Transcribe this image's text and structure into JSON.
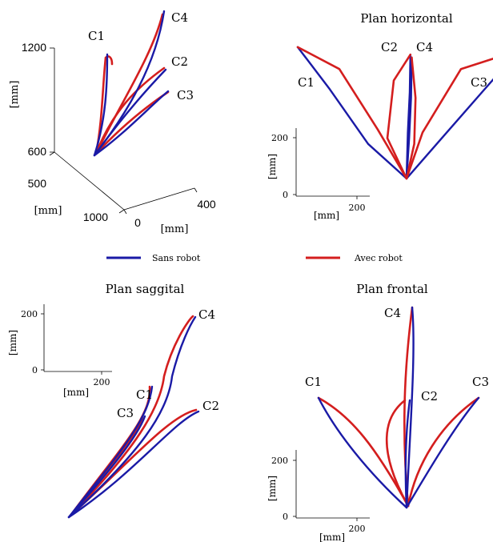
{
  "colors": {
    "sans_robot": "#1a1aa6",
    "avec_robot": "#d41e1e",
    "axis": "#000000"
  },
  "legend": [
    {
      "label": "Sans robot",
      "color": "#1a1aa6"
    },
    {
      "label": "Avec robot",
      "color": "#d41e1e"
    }
  ],
  "chart_data": [
    {
      "panel": "3d",
      "type": "line",
      "title": "",
      "z_label": "[mm]",
      "z_ticks": [
        "1200",
        "600"
      ],
      "y_label": "[mm]",
      "y_ticks": [
        "500",
        "1000"
      ],
      "x_label": "[mm]",
      "x_ticks": [
        "0",
        "400"
      ],
      "target_labels": [
        "C1",
        "C4",
        "C2",
        "C3"
      ]
    },
    {
      "panel": "horizontal",
      "type": "line",
      "title": "Plan horizontal",
      "xlabel": "[mm]",
      "ylabel": "[mm]",
      "x_ticks": [
        "200"
      ],
      "y_ticks": [
        "200",
        "0"
      ],
      "target_labels": [
        "C1",
        "C2",
        "C4",
        "C3"
      ],
      "series": [
        {
          "name": "Sans robot",
          "paths": [
            [
              [
                0,
                0
              ],
              [
                -60,
                60
              ],
              [
                -120,
                155
              ],
              [
                -170,
                228
              ]
            ],
            [
              [
                0,
                0
              ],
              [
                2,
                80
              ],
              [
                5,
                150
              ],
              [
                6,
                215
              ]
            ],
            [
              [
                0,
                0
              ],
              [
                4,
                70
              ],
              [
                7,
                140
              ],
              [
                8,
                210
              ]
            ],
            [
              [
                0,
                0
              ],
              [
                55,
                70
              ],
              [
                118,
                150
              ],
              [
                175,
                222
              ]
            ]
          ]
        },
        {
          "name": "Avec robot",
          "paths": [
            [
              [
                0,
                0
              ],
              [
                -45,
                85
              ],
              [
                -105,
                190
              ],
              [
                -170,
                228
              ]
            ],
            [
              [
                0,
                0
              ],
              [
                -30,
                70
              ],
              [
                -20,
                170
              ],
              [
                6,
                215
              ]
            ],
            [
              [
                0,
                0
              ],
              [
                12,
                60
              ],
              [
                14,
                140
              ],
              [
                8,
                210
              ]
            ],
            [
              [
                0,
                0
              ],
              [
                25,
                80
              ],
              [
                85,
                190
              ],
              [
                175,
                222
              ]
            ]
          ]
        }
      ]
    },
    {
      "panel": "sagittal",
      "type": "line",
      "title": "Plan saggital",
      "xlabel": "[mm]",
      "ylabel": "[mm]",
      "x_ticks": [
        "200"
      ],
      "y_ticks": [
        "200",
        "0"
      ],
      "target_labels": [
        "C4",
        "C1",
        "C3",
        "C2"
      ]
    },
    {
      "panel": "frontal",
      "type": "line",
      "title": "Plan frontal",
      "xlabel": "[mm]",
      "ylabel": "[mm]",
      "x_ticks": [
        "200"
      ],
      "y_ticks": [
        "200",
        "0"
      ],
      "target_labels": [
        "C4",
        "C1",
        "C2",
        "C3"
      ]
    }
  ]
}
